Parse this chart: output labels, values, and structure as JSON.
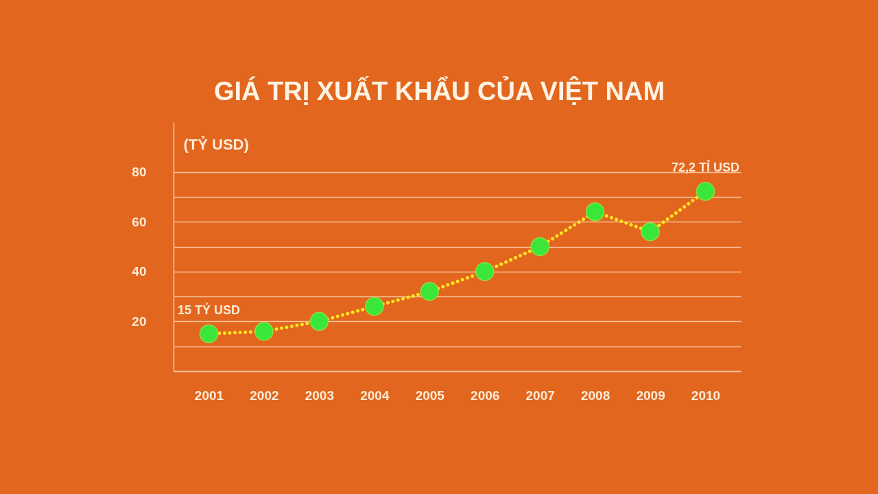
{
  "chart_data": {
    "type": "line",
    "title": "GIÁ TRỊ XUẤT KHẨU CỦA VIỆT NAM",
    "ylabel": "(TỶ USD)",
    "categories": [
      "2001",
      "2002",
      "2003",
      "2004",
      "2005",
      "2006",
      "2007",
      "2008",
      "2009",
      "2010"
    ],
    "values": [
      15,
      16,
      20,
      26,
      32,
      40,
      50,
      64,
      56,
      72.2
    ],
    "value_labels": [
      "15 TỶ USD",
      null,
      null,
      null,
      null,
      null,
      null,
      null,
      null,
      "72,2 TỈ USD"
    ],
    "color": "#ffe51f",
    "colors": [
      "#3ae63a",
      "#3ae63a",
      "#3ae63a",
      "#3ae63a",
      "#3ae63a",
      "#3ae63a",
      "#3ae63a",
      "#3ae63a",
      "#3ae63a",
      "#3ae63a"
    ],
    "marker": "circle",
    "line_style": "dotted",
    "grid": "y",
    "ylim": [
      0,
      100
    ],
    "yticks": [
      {
        "value": 0,
        "label": null
      },
      {
        "value": 10,
        "label": null
      },
      20,
      {
        "value": 30,
        "label": null
      },
      40,
      {
        "value": 50,
        "label": null
      },
      60,
      {
        "value": 70,
        "label": null
      },
      80
    ]
  }
}
